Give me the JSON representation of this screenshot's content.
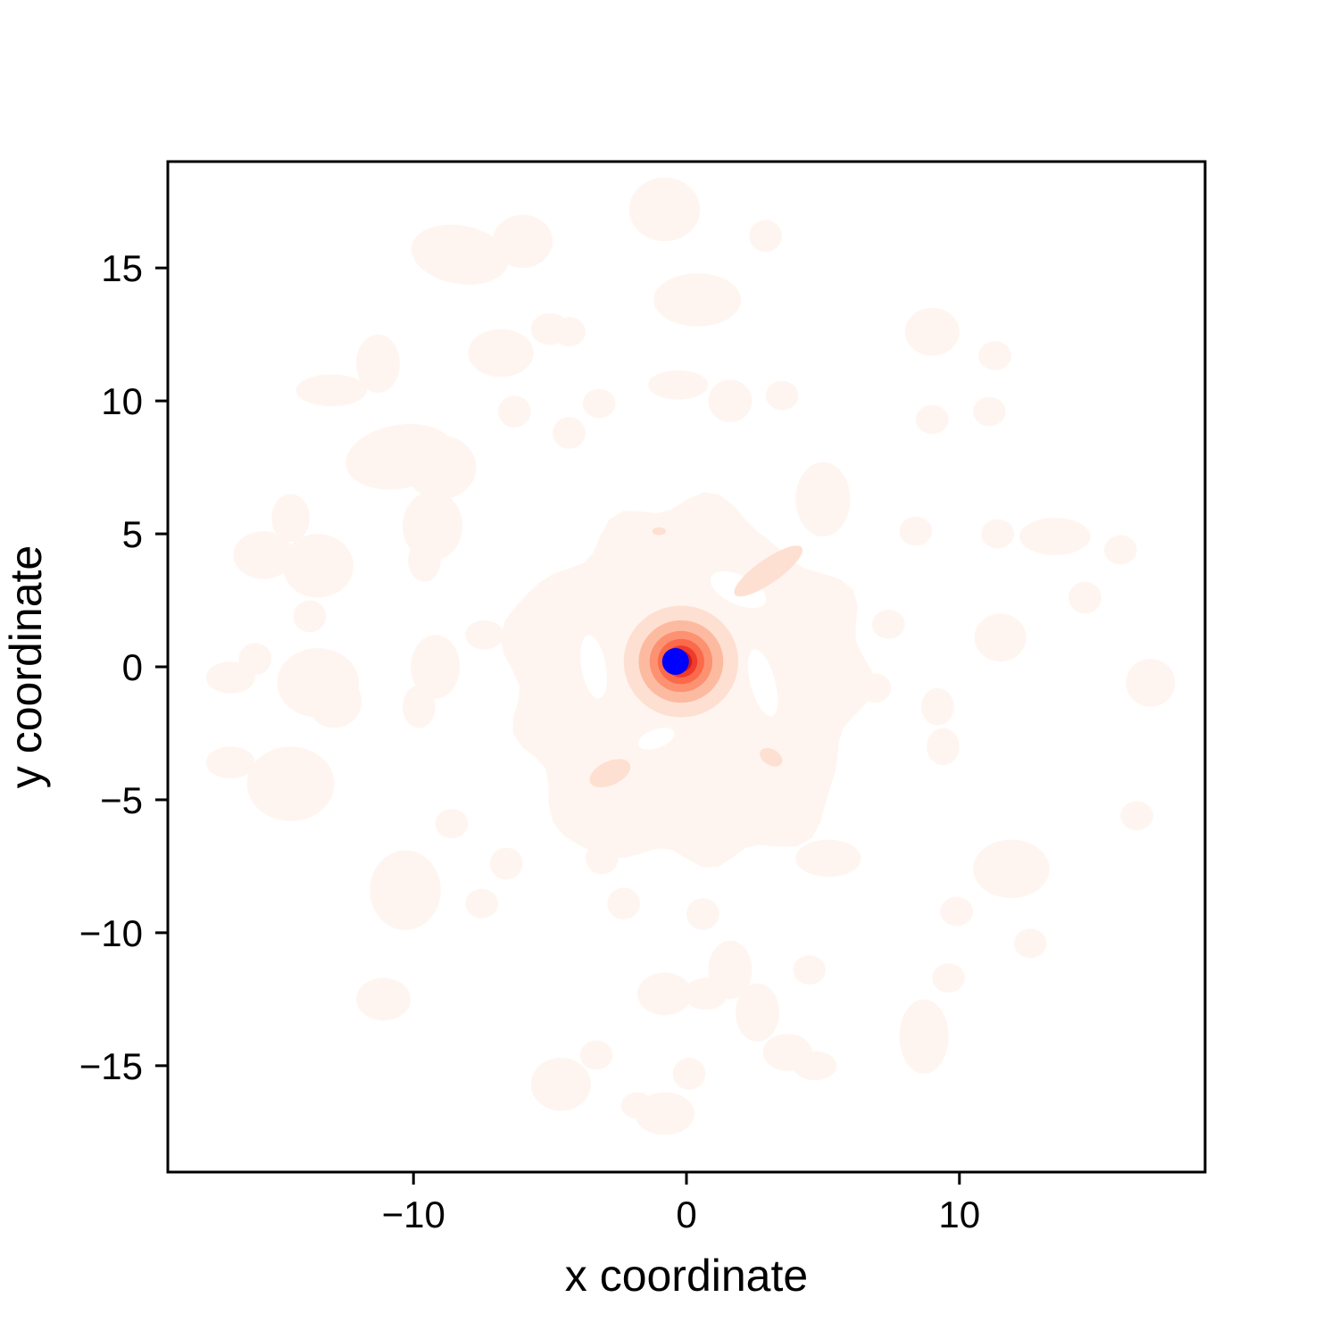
{
  "chart_data": {
    "type": "contour",
    "title": "",
    "xlabel": "x coordinate",
    "ylabel": "y coordinate",
    "xlim": [
      -19,
      19
    ],
    "ylim": [
      -19,
      19
    ],
    "xticks": [
      -10,
      0,
      10
    ],
    "xtick_labels": [
      "−10",
      "0",
      "10"
    ],
    "yticks": [
      -15,
      -10,
      -5,
      0,
      5,
      10,
      15
    ],
    "ytick_labels": [
      "−15",
      "−10",
      "−5",
      "0",
      "5",
      "10",
      "15"
    ],
    "grid": false,
    "legend": "none",
    "colormap": "Reds",
    "colors": {
      "level1": "#fff5f0",
      "level2": "#fee0d2",
      "level3": "#fcbba1",
      "level4": "#fc9272",
      "level5": "#fb6a4a",
      "level6": "#ef3b2c",
      "level7": "#cb181d",
      "level8": "#a50f15",
      "marker": "#0000ff"
    },
    "center_peak": {
      "x": -0.2,
      "y": 0.2
    },
    "marker_point": {
      "x": -0.4,
      "y": 0.2
    },
    "outer_blobs": [
      {
        "x": 0.8,
        "y": -1.5,
        "rx": 0.95,
        "ry": 0.8,
        "angle": 0
      },
      {
        "x": -0.8,
        "y": 17.2,
        "rx": 1.3,
        "ry": 1.2,
        "angle": 0
      },
      {
        "x": 2.9,
        "y": 16.2,
        "rx": 0.6,
        "ry": 0.6,
        "angle": 0
      },
      {
        "x": -8.3,
        "y": 15.5,
        "rx": 1.8,
        "ry": 1.1,
        "angle": -10
      },
      {
        "x": -6.0,
        "y": 16.0,
        "rx": 1.1,
        "ry": 1.0,
        "angle": 0
      },
      {
        "x": 0.4,
        "y": 13.8,
        "rx": 1.6,
        "ry": 1.0,
        "angle": 0
      },
      {
        "x": -6.8,
        "y": 11.8,
        "rx": 1.2,
        "ry": 0.9,
        "angle": 0
      },
      {
        "x": -5.0,
        "y": 12.7,
        "rx": 0.7,
        "ry": 0.6,
        "angle": 0
      },
      {
        "x": -4.3,
        "y": 12.6,
        "rx": 0.6,
        "ry": 0.55,
        "angle": 0
      },
      {
        "x": 9.0,
        "y": 12.6,
        "rx": 1.0,
        "ry": 0.9,
        "angle": 0
      },
      {
        "x": 11.3,
        "y": 11.7,
        "rx": 0.6,
        "ry": 0.55,
        "angle": 0
      },
      {
        "x": -11.3,
        "y": 11.4,
        "rx": 0.8,
        "ry": 1.1,
        "angle": 0
      },
      {
        "x": -13.0,
        "y": 10.4,
        "rx": 1.3,
        "ry": 0.6,
        "angle": 0
      },
      {
        "x": -0.3,
        "y": 10.6,
        "rx": 1.1,
        "ry": 0.55,
        "angle": 0
      },
      {
        "x": 1.6,
        "y": 10.0,
        "rx": 0.8,
        "ry": 0.8,
        "angle": 0
      },
      {
        "x": 3.5,
        "y": 10.2,
        "rx": 0.6,
        "ry": 0.55,
        "angle": 0
      },
      {
        "x": -6.3,
        "y": 9.6,
        "rx": 0.6,
        "ry": 0.6,
        "angle": 0
      },
      {
        "x": -3.2,
        "y": 9.9,
        "rx": 0.6,
        "ry": 0.55,
        "angle": 0
      },
      {
        "x": -4.3,
        "y": 8.8,
        "rx": 0.6,
        "ry": 0.6,
        "angle": 0
      },
      {
        "x": 9.0,
        "y": 9.3,
        "rx": 0.6,
        "ry": 0.55,
        "angle": 0
      },
      {
        "x": 11.1,
        "y": 9.6,
        "rx": 0.6,
        "ry": 0.55,
        "angle": 0
      },
      {
        "x": -10.5,
        "y": 7.9,
        "rx": 2.0,
        "ry": 1.2,
        "angle": 10
      },
      {
        "x": -9.0,
        "y": 7.5,
        "rx": 1.3,
        "ry": 1.2,
        "angle": 0
      },
      {
        "x": -9.3,
        "y": 5.3,
        "rx": 1.1,
        "ry": 1.3,
        "angle": 0
      },
      {
        "x": -9.6,
        "y": 4.0,
        "rx": 0.6,
        "ry": 0.8,
        "angle": 0
      },
      {
        "x": 5.0,
        "y": 6.3,
        "rx": 1.0,
        "ry": 1.4,
        "angle": 0
      },
      {
        "x": -14.5,
        "y": 5.6,
        "rx": 0.7,
        "ry": 0.9,
        "angle": 0
      },
      {
        "x": -15.5,
        "y": 4.2,
        "rx": 1.1,
        "ry": 0.9,
        "angle": 0
      },
      {
        "x": -13.5,
        "y": 3.8,
        "rx": 1.3,
        "ry": 1.2,
        "angle": 0
      },
      {
        "x": -13.8,
        "y": 1.9,
        "rx": 0.6,
        "ry": 0.6,
        "angle": 0
      },
      {
        "x": 8.4,
        "y": 5.1,
        "rx": 0.6,
        "ry": 0.55,
        "angle": 0
      },
      {
        "x": 11.4,
        "y": 5.0,
        "rx": 0.6,
        "ry": 0.55,
        "angle": 0
      },
      {
        "x": 13.5,
        "y": 4.9,
        "rx": 1.3,
        "ry": 0.7,
        "angle": 0
      },
      {
        "x": 15.9,
        "y": 4.4,
        "rx": 0.6,
        "ry": 0.55,
        "angle": 0
      },
      {
        "x": 14.6,
        "y": 2.6,
        "rx": 0.6,
        "ry": 0.6,
        "angle": 0
      },
      {
        "x": 7.4,
        "y": 1.6,
        "rx": 0.6,
        "ry": 0.55,
        "angle": 0
      },
      {
        "x": 11.5,
        "y": 1.1,
        "rx": 0.95,
        "ry": 0.9,
        "angle": 0
      },
      {
        "x": -7.4,
        "y": 1.2,
        "rx": 0.7,
        "ry": 0.55,
        "angle": 0
      },
      {
        "x": -9.2,
        "y": 0.0,
        "rx": 0.9,
        "ry": 1.2,
        "angle": 0
      },
      {
        "x": -9.8,
        "y": -1.5,
        "rx": 0.6,
        "ry": 0.8,
        "angle": 0
      },
      {
        "x": -16.7,
        "y": -0.4,
        "rx": 0.9,
        "ry": 0.6,
        "angle": 0
      },
      {
        "x": -15.8,
        "y": 0.3,
        "rx": 0.6,
        "ry": 0.6,
        "angle": 0
      },
      {
        "x": -13.5,
        "y": -0.6,
        "rx": 1.5,
        "ry": 1.3,
        "angle": 0
      },
      {
        "x": -12.9,
        "y": -1.3,
        "rx": 1.0,
        "ry": 1.0,
        "angle": 0
      },
      {
        "x": -16.7,
        "y": -3.6,
        "rx": 0.9,
        "ry": 0.6,
        "angle": 0
      },
      {
        "x": -14.5,
        "y": -4.4,
        "rx": 1.6,
        "ry": 1.4,
        "angle": 0
      },
      {
        "x": 6.9,
        "y": -0.8,
        "rx": 0.6,
        "ry": 0.55,
        "angle": 0
      },
      {
        "x": 9.2,
        "y": -1.5,
        "rx": 0.6,
        "ry": 0.7,
        "angle": 0
      },
      {
        "x": 9.4,
        "y": -3.0,
        "rx": 0.6,
        "ry": 0.7,
        "angle": 0
      },
      {
        "x": 17.0,
        "y": -0.6,
        "rx": 0.9,
        "ry": 0.9,
        "angle": 0
      },
      {
        "x": 16.5,
        "y": -5.6,
        "rx": 0.6,
        "ry": 0.55,
        "angle": 0
      },
      {
        "x": -8.6,
        "y": -5.9,
        "rx": 0.6,
        "ry": 0.55,
        "angle": 0
      },
      {
        "x": -3.1,
        "y": -7.2,
        "rx": 0.6,
        "ry": 0.6,
        "angle": 0
      },
      {
        "x": -6.6,
        "y": -7.4,
        "rx": 0.6,
        "ry": 0.6,
        "angle": 0
      },
      {
        "x": -7.5,
        "y": -8.9,
        "rx": 0.6,
        "ry": 0.55,
        "angle": 0
      },
      {
        "x": -10.3,
        "y": -8.4,
        "rx": 1.3,
        "ry": 1.5,
        "angle": 0
      },
      {
        "x": -2.3,
        "y": -8.9,
        "rx": 0.6,
        "ry": 0.6,
        "angle": 0
      },
      {
        "x": 0.6,
        "y": -9.3,
        "rx": 0.6,
        "ry": 0.6,
        "angle": 0
      },
      {
        "x": 5.2,
        "y": -7.2,
        "rx": 1.2,
        "ry": 0.7,
        "angle": 0
      },
      {
        "x": 11.9,
        "y": -7.6,
        "rx": 1.4,
        "ry": 1.1,
        "angle": 0
      },
      {
        "x": 9.9,
        "y": -9.2,
        "rx": 0.6,
        "ry": 0.55,
        "angle": 0
      },
      {
        "x": 12.6,
        "y": -10.4,
        "rx": 0.6,
        "ry": 0.55,
        "angle": 0
      },
      {
        "x": 4.5,
        "y": -11.4,
        "rx": 0.6,
        "ry": 0.55,
        "angle": 0
      },
      {
        "x": 9.6,
        "y": -11.7,
        "rx": 0.6,
        "ry": 0.55,
        "angle": 0
      },
      {
        "x": 1.6,
        "y": -11.4,
        "rx": 0.8,
        "ry": 1.1,
        "angle": 0
      },
      {
        "x": -0.8,
        "y": -12.3,
        "rx": 1.0,
        "ry": 0.8,
        "angle": 0
      },
      {
        "x": 0.7,
        "y": -12.3,
        "rx": 0.8,
        "ry": 0.6,
        "angle": 0
      },
      {
        "x": 2.6,
        "y": -13.0,
        "rx": 0.8,
        "ry": 1.1,
        "angle": 0
      },
      {
        "x": 3.7,
        "y": -14.5,
        "rx": 0.9,
        "ry": 0.7,
        "angle": 0
      },
      {
        "x": 4.7,
        "y": -15.0,
        "rx": 0.8,
        "ry": 0.55,
        "angle": 0
      },
      {
        "x": -11.1,
        "y": -12.5,
        "rx": 1.0,
        "ry": 0.8,
        "angle": 0
      },
      {
        "x": 8.7,
        "y": -13.9,
        "rx": 0.9,
        "ry": 1.4,
        "angle": 0
      },
      {
        "x": -3.3,
        "y": -14.6,
        "rx": 0.6,
        "ry": 0.55,
        "angle": 0
      },
      {
        "x": -4.6,
        "y": -15.7,
        "rx": 1.1,
        "ry": 1.0,
        "angle": 0
      },
      {
        "x": 0.1,
        "y": -15.3,
        "rx": 0.6,
        "ry": 0.6,
        "angle": 0
      },
      {
        "x": -0.8,
        "y": -16.8,
        "rx": 1.1,
        "ry": 0.8,
        "angle": 0
      },
      {
        "x": -1.8,
        "y": -16.5,
        "rx": 0.6,
        "ry": 0.5,
        "angle": 0
      }
    ],
    "inner_region_x_range": [
      -6.5,
      6.5
    ],
    "inner_region_y_range": [
      -7.5,
      6.0
    ],
    "inner_holes": [
      {
        "x": 1.9,
        "y": 2.9,
        "rx": 1.1,
        "ry": 0.55,
        "angle": -25
      },
      {
        "x": -3.4,
        "y": 0.0,
        "rx": 0.45,
        "ry": 1.2,
        "angle": 10
      },
      {
        "x": 2.8,
        "y": -0.6,
        "rx": 0.45,
        "ry": 1.3,
        "angle": 15
      },
      {
        "x": -1.1,
        "y": -2.7,
        "rx": 0.7,
        "ry": 0.35,
        "angle": 20
      }
    ],
    "inner_darker_streaks": [
      {
        "x": 3.0,
        "y": 3.6,
        "rx": 1.5,
        "ry": 0.45,
        "angle": 35
      },
      {
        "x": -2.8,
        "y": -4.0,
        "rx": 0.8,
        "ry": 0.45,
        "angle": 25
      },
      {
        "x": 3.1,
        "y": -3.4,
        "rx": 0.45,
        "ry": 0.3,
        "angle": -30
      },
      {
        "x": -1.0,
        "y": 5.1,
        "rx": 0.25,
        "ry": 0.15,
        "angle": 0
      }
    ],
    "peak_rings": [
      2.1,
      1.55,
      1.15,
      0.85,
      0.6,
      0.4,
      0.25
    ]
  }
}
